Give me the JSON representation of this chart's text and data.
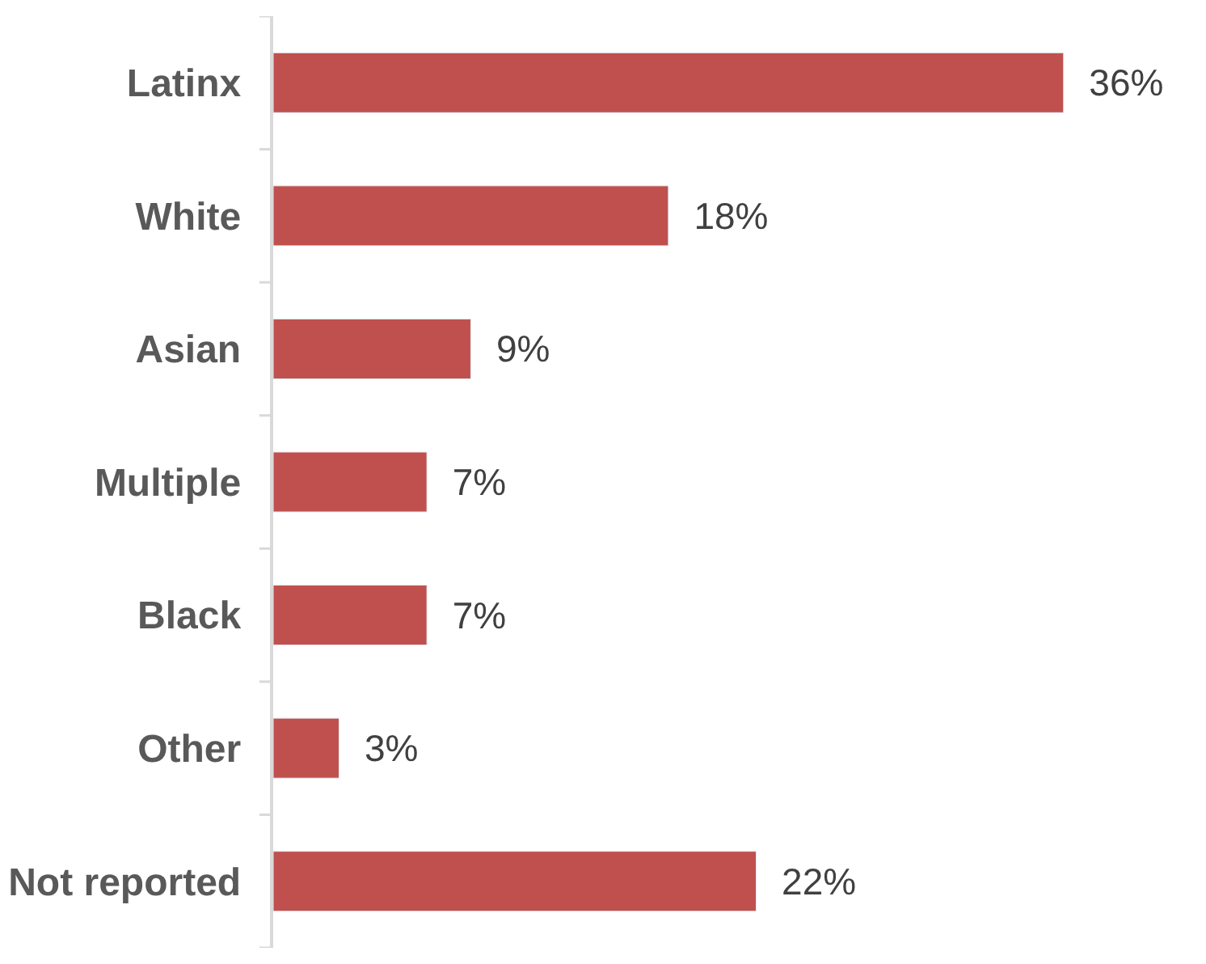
{
  "chart_data": {
    "type": "bar",
    "orientation": "horizontal",
    "categories": [
      "Latinx",
      "White",
      "Asian",
      "Multiple",
      "Black",
      "Other",
      "Not reported"
    ],
    "values": [
      36,
      18,
      9,
      7,
      7,
      3,
      22
    ],
    "value_labels": [
      "36%",
      "18%",
      "9%",
      "7%",
      "7%",
      "3%",
      "22%"
    ],
    "color": "#c0504d"
  }
}
